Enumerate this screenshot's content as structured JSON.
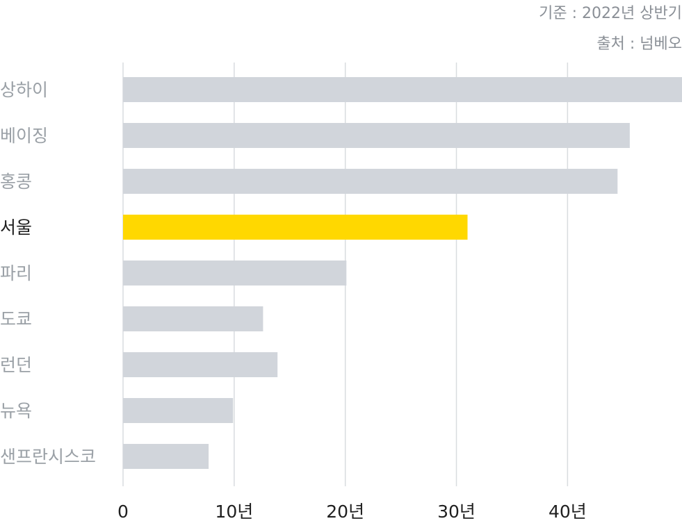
{
  "notes": {
    "basis": "기준 : 2022년 상반기",
    "source": "출처 : 넘베오"
  },
  "colors": {
    "bar": "#d1d5db",
    "highlight": "#ffd800",
    "grid": "#d9dcdf"
  },
  "chart_data": {
    "type": "bar",
    "orientation": "horizontal",
    "categories": [
      "상하이",
      "베이징",
      "홍콩",
      "서울",
      "파리",
      "도쿄",
      "런던",
      "뉴욕",
      "샌프란시스코"
    ],
    "values": [
      50.3,
      45.6,
      44.5,
      31.0,
      20.1,
      12.6,
      13.9,
      9.9,
      7.7
    ],
    "highlight_category": "서울",
    "xlim": [
      0,
      50.3
    ],
    "xticks": [
      0,
      10,
      20,
      30,
      40
    ],
    "xtick_labels": [
      "0",
      "10년",
      "20년",
      "30년",
      "40년"
    ],
    "grid": true
  }
}
